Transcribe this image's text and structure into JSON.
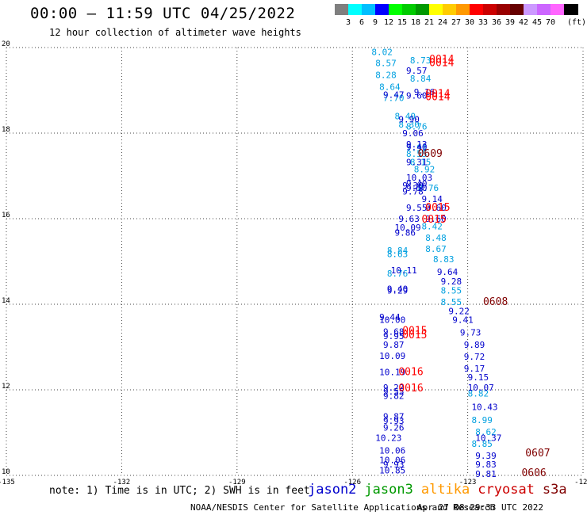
{
  "header": {
    "title": "00:00 – 11:59 UTC 04/25/2022",
    "subtitle": "12 hour collection of altimeter wave heights"
  },
  "colorbar": {
    "swatches": [
      "#7f7f7f",
      "#00ffff",
      "#00bfff",
      "#0000ff",
      "#00ff00",
      "#00cc00",
      "#009900",
      "#ffff00",
      "#ffcc00",
      "#ff9900",
      "#ff0000",
      "#cc0000",
      "#990000",
      "#660000",
      "#cc99ff",
      "#cc66ff",
      "#ff66ff",
      "#000000"
    ],
    "labels": [
      "3",
      "6",
      "9",
      "12",
      "15",
      "18",
      "21",
      "24",
      "27",
      "30",
      "33",
      "36",
      "39",
      "42",
      "45",
      "70"
    ],
    "unit": "(ft)"
  },
  "footer": {
    "note": "note: 1) Time is in UTC; 2) SWH is in feet",
    "satellites": [
      {
        "name": "jason2",
        "color": "#0000cc"
      },
      {
        "name": "jason3",
        "color": "#009900"
      },
      {
        "name": "altika",
        "color": "#ff9900"
      },
      {
        "name": "cryosat",
        "color": "#cc0000"
      },
      {
        "name": "s3a",
        "color": "#800000"
      }
    ],
    "credit": "NOAA/NESDIS Center for Satellite Applications and Research",
    "stamp": "Apr 27 08:29:33 UTC 2022"
  },
  "chart_data": {
    "type": "scatter",
    "xlim": [
      -135,
      -120
    ],
    "ylim": [
      10,
      20
    ],
    "xticks": [
      "-135",
      "-132",
      "-129",
      "-126",
      "-123",
      "-120"
    ],
    "yticks": [
      "10",
      "12",
      "14",
      "16",
      "18",
      "20"
    ],
    "grid": true,
    "colors": {
      "cyan": "#00a0e0",
      "blue": "#0000cc",
      "red": "#ff0000",
      "maroon": "#800000"
    },
    "series": [
      {
        "name": "jason2",
        "color": "cyan",
        "points": [
          {
            "x": -125.5,
            "y": 19.9,
            "v": "8.02"
          },
          {
            "x": -125.4,
            "y": 19.64,
            "v": "8.57"
          },
          {
            "x": -124.5,
            "y": 19.7,
            "v": "8.73"
          },
          {
            "x": -125.4,
            "y": 19.36,
            "v": "8.28"
          },
          {
            "x": -124.5,
            "y": 19.28,
            "v": "8.84"
          },
          {
            "x": -125.3,
            "y": 19.08,
            "v": "8.64"
          },
          {
            "x": -125.2,
            "y": 18.82,
            "v": "7.70"
          },
          {
            "x": -124.9,
            "y": 18.4,
            "v": "8.40"
          },
          {
            "x": -124.8,
            "y": 18.2,
            "v": "8.30"
          },
          {
            "x": -124.6,
            "y": 18.16,
            "v": "8.76"
          },
          {
            "x": -124.6,
            "y": 17.66,
            "v": "7.91"
          },
          {
            "x": -124.6,
            "y": 17.52,
            "v": "8.55"
          },
          {
            "x": -124.5,
            "y": 17.32,
            "v": "8.15"
          },
          {
            "x": -124.4,
            "y": 17.16,
            "v": "8.92"
          },
          {
            "x": -124.3,
            "y": 16.72,
            "v": "8.76"
          },
          {
            "x": -124.2,
            "y": 15.82,
            "v": "8.42"
          },
          {
            "x": -124.1,
            "y": 15.56,
            "v": "8.48"
          },
          {
            "x": -124.1,
            "y": 15.3,
            "v": "8.67"
          },
          {
            "x": -125.1,
            "y": 15.26,
            "v": "8.84"
          },
          {
            "x": -125.1,
            "y": 15.18,
            "v": "8.63"
          },
          {
            "x": -123.9,
            "y": 15.06,
            "v": "8.83"
          },
          {
            "x": -125.1,
            "y": 14.72,
            "v": "8.76"
          },
          {
            "x": -123.7,
            "y": 14.32,
            "v": "8.55"
          },
          {
            "x": -123.7,
            "y": 14.06,
            "v": "8.55"
          },
          {
            "x": -123.0,
            "y": 11.92,
            "v": "8.82"
          },
          {
            "x": -122.9,
            "y": 11.3,
            "v": "8.99"
          },
          {
            "x": -122.8,
            "y": 11.02,
            "v": "8.62"
          },
          {
            "x": -122.9,
            "y": 10.74,
            "v": "8.85"
          }
        ]
      },
      {
        "name": "jason3",
        "color": "blue",
        "points": [
          {
            "x": -124.6,
            "y": 19.46,
            "v": "9.57"
          },
          {
            "x": -124.4,
            "y": 18.96,
            "v": "9.16"
          },
          {
            "x": -125.2,
            "y": 18.9,
            "v": "9.47"
          },
          {
            "x": -124.6,
            "y": 18.88,
            "v": "9.60"
          },
          {
            "x": -124.8,
            "y": 18.32,
            "v": "9.90"
          },
          {
            "x": -124.7,
            "y": 18.0,
            "v": "9.06"
          },
          {
            "x": -124.6,
            "y": 17.74,
            "v": "9.13"
          },
          {
            "x": -124.6,
            "y": 17.68,
            "v": "9.40"
          },
          {
            "x": -124.6,
            "y": 17.32,
            "v": "9.31"
          },
          {
            "x": -124.6,
            "y": 16.96,
            "v": "10.03"
          },
          {
            "x": -124.6,
            "y": 16.82,
            "v": "9.40"
          },
          {
            "x": -124.7,
            "y": 16.78,
            "v": "9.30"
          },
          {
            "x": -124.6,
            "y": 16.72,
            "v": "9.50"
          },
          {
            "x": -124.7,
            "y": 16.64,
            "v": "9.78"
          },
          {
            "x": -124.2,
            "y": 16.46,
            "v": "9.14"
          },
          {
            "x": -124.6,
            "y": 16.26,
            "v": "9.55"
          },
          {
            "x": -124.1,
            "y": 16.26,
            "v": "9.60"
          },
          {
            "x": -124.8,
            "y": 16.0,
            "v": "9.63"
          },
          {
            "x": -124.1,
            "y": 16.0,
            "v": "9.60"
          },
          {
            "x": -124.9,
            "y": 15.8,
            "v": "10.09"
          },
          {
            "x": -124.9,
            "y": 15.68,
            "v": "9.86"
          },
          {
            "x": -125.0,
            "y": 14.8,
            "v": "10.11"
          },
          {
            "x": -123.8,
            "y": 14.76,
            "v": "9.64"
          },
          {
            "x": -123.7,
            "y": 14.54,
            "v": "9.28"
          },
          {
            "x": -125.1,
            "y": 14.36,
            "v": "9.40"
          },
          {
            "x": -125.1,
            "y": 14.32,
            "v": "9.29"
          },
          {
            "x": -123.5,
            "y": 13.84,
            "v": "9.22"
          },
          {
            "x": -125.3,
            "y": 13.7,
            "v": "9.44"
          },
          {
            "x": -125.3,
            "y": 13.64,
            "v": "10.00"
          },
          {
            "x": -123.4,
            "y": 13.64,
            "v": "9.41"
          },
          {
            "x": -125.2,
            "y": 13.36,
            "v": "9.68"
          },
          {
            "x": -125.2,
            "y": 13.26,
            "v": "9.95"
          },
          {
            "x": -123.2,
            "y": 13.34,
            "v": "9.73"
          },
          {
            "x": -125.2,
            "y": 13.06,
            "v": "9.87"
          },
          {
            "x": -123.1,
            "y": 13.06,
            "v": "9.89"
          },
          {
            "x": -125.3,
            "y": 12.8,
            "v": "10.09"
          },
          {
            "x": -123.1,
            "y": 12.78,
            "v": "9.72"
          },
          {
            "x": -123.1,
            "y": 12.5,
            "v": "9.17"
          },
          {
            "x": -125.3,
            "y": 12.42,
            "v": "10.19"
          },
          {
            "x": -123.0,
            "y": 12.3,
            "v": "9.15"
          },
          {
            "x": -123.0,
            "y": 12.06,
            "v": "10.07"
          },
          {
            "x": -125.2,
            "y": 12.06,
            "v": "9.22"
          },
          {
            "x": -125.2,
            "y": 11.96,
            "v": "9.55"
          },
          {
            "x": -125.2,
            "y": 11.86,
            "v": "9.82"
          },
          {
            "x": -122.9,
            "y": 11.6,
            "v": "10.43"
          },
          {
            "x": -125.2,
            "y": 11.38,
            "v": "9.87"
          },
          {
            "x": -125.2,
            "y": 11.28,
            "v": "9.93"
          },
          {
            "x": -125.2,
            "y": 11.12,
            "v": "9.26"
          },
          {
            "x": -125.4,
            "y": 10.88,
            "v": "10.23"
          },
          {
            "x": -122.8,
            "y": 10.88,
            "v": "10.37"
          },
          {
            "x": -125.3,
            "y": 10.58,
            "v": "10.06"
          },
          {
            "x": -122.8,
            "y": 10.46,
            "v": "9.39"
          },
          {
            "x": -125.3,
            "y": 10.36,
            "v": "10.06"
          },
          {
            "x": -122.8,
            "y": 10.26,
            "v": "9.83"
          },
          {
            "x": -125.2,
            "y": 10.26,
            "v": "9.93"
          },
          {
            "x": -125.3,
            "y": 10.12,
            "v": "10.85"
          },
          {
            "x": -122.8,
            "y": 10.04,
            "v": "9.81"
          }
        ]
      },
      {
        "name": "cryosat",
        "color": "red",
        "points": [
          {
            "x": -124.0,
            "y": 19.72,
            "v": "0014"
          },
          {
            "x": -124.0,
            "y": 19.64,
            "v": "0014"
          },
          {
            "x": -124.1,
            "y": 18.92,
            "v": "0014"
          },
          {
            "x": -124.1,
            "y": 18.84,
            "v": "0014"
          },
          {
            "x": -124.1,
            "y": 16.26,
            "v": "0015"
          },
          {
            "x": -124.2,
            "y": 15.98,
            "v": "0015"
          },
          {
            "x": -124.7,
            "y": 13.38,
            "v": "0015"
          },
          {
            "x": -124.7,
            "y": 13.28,
            "v": "0015"
          },
          {
            "x": -124.8,
            "y": 12.42,
            "v": "0016"
          },
          {
            "x": -124.8,
            "y": 12.04,
            "v": "0016"
          }
        ]
      },
      {
        "name": "s3a",
        "color": "maroon",
        "points": [
          {
            "x": -124.3,
            "y": 17.52,
            "v": "0609"
          },
          {
            "x": -122.6,
            "y": 14.06,
            "v": "0608"
          },
          {
            "x": -121.5,
            "y": 10.52,
            "v": "0607"
          },
          {
            "x": -121.6,
            "y": 10.06,
            "v": "0606"
          }
        ]
      }
    ]
  }
}
